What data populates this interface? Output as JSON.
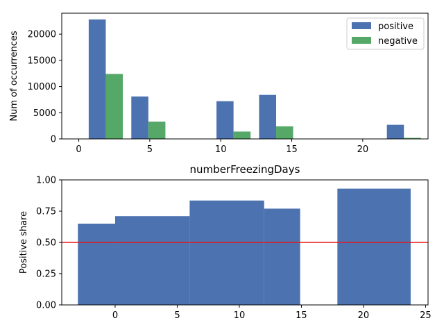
{
  "chart_data": [
    {
      "type": "bar",
      "title": "",
      "xlabel": "",
      "ylabel": "Num of occurrences",
      "xlim": [
        -1.2,
        24.6
      ],
      "ylim": [
        0,
        24000
      ],
      "xticks": [
        0,
        5,
        10,
        15,
        20
      ],
      "yticks": [
        0,
        5000,
        10000,
        15000,
        20000
      ],
      "legend_position": "top-right",
      "bar_width": 1.2,
      "series": [
        {
          "name": "positive",
          "color": "#4c72b0",
          "x": [
            1.3,
            4.3,
            10.3,
            13.3,
            22.3
          ],
          "values": [
            22800,
            8100,
            7200,
            8400,
            2700
          ]
        },
        {
          "name": "negative",
          "color": "#55a868",
          "x": [
            2.5,
            5.5,
            11.5,
            14.5,
            23.5
          ],
          "values": [
            12400,
            3300,
            1400,
            2400,
            200
          ]
        }
      ]
    },
    {
      "type": "bar",
      "title": "numberFreezingDays",
      "xlabel": "",
      "ylabel": "Positive share",
      "xlim": [
        -4.3,
        25.2
      ],
      "ylim": [
        0,
        1
      ],
      "xticks": [
        0,
        5,
        10,
        15,
        20,
        25
      ],
      "yticks": [
        "0.00",
        "0.25",
        "0.50",
        "0.75",
        "1.00"
      ],
      "reference_line": {
        "y": 0.5,
        "color": "#e41a1c"
      },
      "bar_color": "#4c72b0",
      "bars": [
        {
          "x0": -3.0,
          "x1": 0.0,
          "value": 0.65
        },
        {
          "x0": 0.0,
          "x1": 6.0,
          "value": 0.71
        },
        {
          "x0": 6.0,
          "x1": 12.0,
          "value": 0.835
        },
        {
          "x0": 12.0,
          "x1": 14.9,
          "value": 0.77
        },
        {
          "x0": 17.9,
          "x1": 23.8,
          "value": 0.93
        }
      ]
    }
  ]
}
